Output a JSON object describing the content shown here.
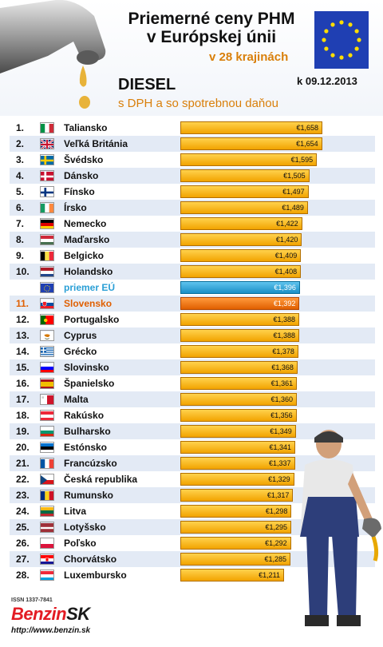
{
  "header": {
    "title_line1": "Priemerné ceny PHM",
    "title_line2": "v Európskej únii",
    "subtitle": "v 28 krajinách",
    "fuel": "DIESEL",
    "date": "k 09.12.2013",
    "tax_note": "s DPH a so spotrebnou daňou"
  },
  "footer": {
    "issn": "ISSN 1337-7841",
    "brand_part1": "Benzin",
    "brand_part2": "SK",
    "url": "http://www.benzin.sk"
  },
  "colors": {
    "bar": "#f2a300",
    "eu_bar": "#1a8fc6",
    "sk_bar": "#e05f00",
    "subtitle": "#d97f0a",
    "brand": "#e31b23"
  },
  "chart_data": {
    "type": "bar",
    "orientation": "horizontal",
    "currency": "€",
    "xlim": [
      0,
      1.658
    ],
    "rows": [
      {
        "rank": "1.",
        "country": "Taliansko",
        "flag": "IT",
        "label": "€1,658",
        "value": 1.658
      },
      {
        "rank": "2.",
        "country": "Veľká Británia",
        "flag": "GB",
        "label": "€1,654",
        "value": 1.654
      },
      {
        "rank": "3.",
        "country": "Švédsko",
        "flag": "SE",
        "label": "€1,595",
        "value": 1.595
      },
      {
        "rank": "4.",
        "country": "Dánsko",
        "flag": "DK",
        "label": "€1,505",
        "value": 1.505
      },
      {
        "rank": "5.",
        "country": "Fínsko",
        "flag": "FI",
        "label": "€1,497",
        "value": 1.497
      },
      {
        "rank": "6.",
        "country": "Írsko",
        "flag": "IE",
        "label": "€1,489",
        "value": 1.489
      },
      {
        "rank": "7.",
        "country": "Nemecko",
        "flag": "DE",
        "label": "€1,422",
        "value": 1.422
      },
      {
        "rank": "8.",
        "country": "Maďarsko",
        "flag": "HU",
        "label": "€1,420",
        "value": 1.42
      },
      {
        "rank": "9.",
        "country": "Belgicko",
        "flag": "BE",
        "label": "€1,409",
        "value": 1.409
      },
      {
        "rank": "10.",
        "country": "Holandsko",
        "flag": "NL",
        "label": "€1,408",
        "value": 1.408
      },
      {
        "rank": "",
        "country": "priemer EÚ",
        "flag": "EU",
        "label": "€1,396",
        "value": 1.396,
        "kind": "eu"
      },
      {
        "rank": "11.",
        "country": "Slovensko",
        "flag": "SK",
        "label": "€1,392",
        "value": 1.392,
        "kind": "sk"
      },
      {
        "rank": "12.",
        "country": "Portugalsko",
        "flag": "PT",
        "label": "€1,388",
        "value": 1.388
      },
      {
        "rank": "13.",
        "country": "Cyprus",
        "flag": "CY",
        "label": "€1,388",
        "value": 1.388
      },
      {
        "rank": "14.",
        "country": "Grécko",
        "flag": "GR",
        "label": "€1,378",
        "value": 1.378
      },
      {
        "rank": "15.",
        "country": "Slovinsko",
        "flag": "SI",
        "label": "€1,368",
        "value": 1.368
      },
      {
        "rank": "16.",
        "country": "Španielsko",
        "flag": "ES",
        "label": "€1,361",
        "value": 1.361
      },
      {
        "rank": "17.",
        "country": "Malta",
        "flag": "MT",
        "label": "€1,360",
        "value": 1.36
      },
      {
        "rank": "18.",
        "country": "Rakúsko",
        "flag": "AT",
        "label": "€1,356",
        "value": 1.356
      },
      {
        "rank": "19.",
        "country": "Bulharsko",
        "flag": "BG",
        "label": "€1,349",
        "value": 1.349
      },
      {
        "rank": "20.",
        "country": "Estónsko",
        "flag": "EE",
        "label": "€1,341",
        "value": 1.341
      },
      {
        "rank": "21.",
        "country": "Francúzsko",
        "flag": "FR",
        "label": "€1,337",
        "value": 1.337
      },
      {
        "rank": "22.",
        "country": "Česká republika",
        "flag": "CZ",
        "label": "€1,329",
        "value": 1.329
      },
      {
        "rank": "23.",
        "country": "Rumunsko",
        "flag": "RO",
        "label": "€1,317",
        "value": 1.317
      },
      {
        "rank": "24.",
        "country": "Litva",
        "flag": "LT",
        "label": "€1,298",
        "value": 1.298
      },
      {
        "rank": "25.",
        "country": "Lotyšsko",
        "flag": "LV",
        "label": "€1,295",
        "value": 1.295
      },
      {
        "rank": "26.",
        "country": "Poľsko",
        "flag": "PL",
        "label": "€1,292",
        "value": 1.292
      },
      {
        "rank": "27.",
        "country": "Chorvátsko",
        "flag": "HR",
        "label": "€1,285",
        "value": 1.285
      },
      {
        "rank": "28.",
        "country": "Luxembursko",
        "flag": "LU",
        "label": "€1,211",
        "value": 1.211
      }
    ]
  }
}
